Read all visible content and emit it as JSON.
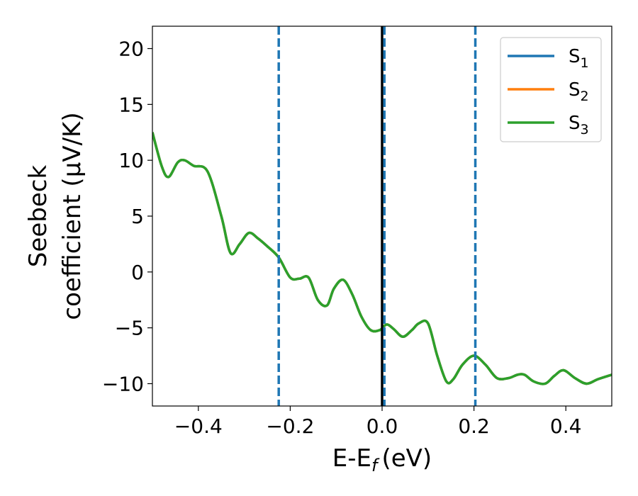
{
  "chart_data": {
    "type": "line",
    "xlabel": "E-E",
    "xlabel_sub": "f",
    "xlabel_unit": "(eV)",
    "ylabel_line1": "Seebeck",
    "ylabel_line2": "coefficient  (μV/K)",
    "xlim": [
      -0.5,
      0.5
    ],
    "ylim": [
      -12,
      22
    ],
    "xticks": [
      -0.4,
      -0.2,
      0.0,
      0.2,
      0.4
    ],
    "xtick_labels": [
      "−0.4",
      "−0.2",
      "0.0",
      "0.2",
      "0.4"
    ],
    "yticks": [
      -10,
      -5,
      0,
      5,
      10,
      15,
      20
    ],
    "ytick_labels": [
      "−10",
      "−5",
      "0",
      "5",
      "10",
      "15",
      "20"
    ],
    "grid": false,
    "legend_position": "top-right",
    "x": [
      -0.5,
      -0.48,
      -0.465,
      -0.445,
      -0.43,
      -0.41,
      -0.38,
      -0.35,
      -0.33,
      -0.31,
      -0.29,
      -0.27,
      -0.25,
      -0.225,
      -0.2,
      -0.18,
      -0.16,
      -0.14,
      -0.12,
      -0.105,
      -0.085,
      -0.065,
      -0.045,
      -0.025,
      -0.005,
      0.01,
      0.025,
      0.045,
      0.065,
      0.08,
      0.1,
      0.12,
      0.14,
      0.155,
      0.175,
      0.2,
      0.225,
      0.25,
      0.275,
      0.295,
      0.31,
      0.33,
      0.355,
      0.375,
      0.395,
      0.42,
      0.445,
      0.47,
      0.5
    ],
    "series": [
      {
        "name": "S",
        "sub": "1",
        "color": "#1f77b4",
        "values": [
          12.5,
          9.5,
          8.5,
          9.8,
          10.0,
          9.5,
          9.0,
          5.0,
          1.7,
          2.5,
          3.5,
          3.0,
          2.3,
          1.3,
          -0.5,
          -0.6,
          -0.5,
          -2.5,
          -3.0,
          -1.5,
          -0.7,
          -2.0,
          -4.0,
          -5.2,
          -5.2,
          -4.7,
          -5.1,
          -5.8,
          -5.2,
          -4.6,
          -4.6,
          -7.5,
          -9.8,
          -9.6,
          -8.3,
          -7.5,
          -8.3,
          -9.5,
          -9.5,
          -9.2,
          -9.2,
          -9.8,
          -10.0,
          -9.3,
          -8.8,
          -9.5,
          -10.0,
          -9.6,
          -9.2
        ]
      },
      {
        "name": "S",
        "sub": "2",
        "color": "#ff7f0e",
        "values": [
          12.5,
          9.5,
          8.5,
          9.8,
          10.0,
          9.5,
          9.0,
          5.0,
          1.7,
          2.5,
          3.5,
          3.0,
          2.3,
          1.3,
          -0.5,
          -0.6,
          -0.5,
          -2.5,
          -3.0,
          -1.5,
          -0.7,
          -2.0,
          -4.0,
          -5.2,
          -5.2,
          -4.7,
          -5.1,
          -5.8,
          -5.2,
          -4.6,
          -4.6,
          -7.5,
          -9.8,
          -9.6,
          -8.3,
          -7.5,
          -8.3,
          -9.5,
          -9.5,
          -9.2,
          -9.2,
          -9.8,
          -10.0,
          -9.3,
          -8.8,
          -9.5,
          -10.0,
          -9.6,
          -9.2
        ]
      },
      {
        "name": "S",
        "sub": "3",
        "color": "#2ca02c",
        "values": [
          12.5,
          9.5,
          8.5,
          9.8,
          10.0,
          9.5,
          9.0,
          5.0,
          1.7,
          2.5,
          3.5,
          3.0,
          2.3,
          1.3,
          -0.5,
          -0.6,
          -0.5,
          -2.5,
          -3.0,
          -1.5,
          -0.7,
          -2.0,
          -4.0,
          -5.2,
          -5.2,
          -4.7,
          -5.1,
          -5.8,
          -5.2,
          -4.6,
          -4.6,
          -7.5,
          -9.8,
          -9.6,
          -8.3,
          -7.5,
          -8.3,
          -9.5,
          -9.5,
          -9.2,
          -9.2,
          -9.8,
          -10.0,
          -9.3,
          -8.8,
          -9.5,
          -10.0,
          -9.6,
          -9.2
        ]
      }
    ],
    "vlines_dashed": {
      "color": "#1f77b4",
      "x": [
        -0.225,
        0.005,
        0.203
      ]
    },
    "vline_solid": {
      "color": "#000000",
      "x": 0.0
    }
  }
}
